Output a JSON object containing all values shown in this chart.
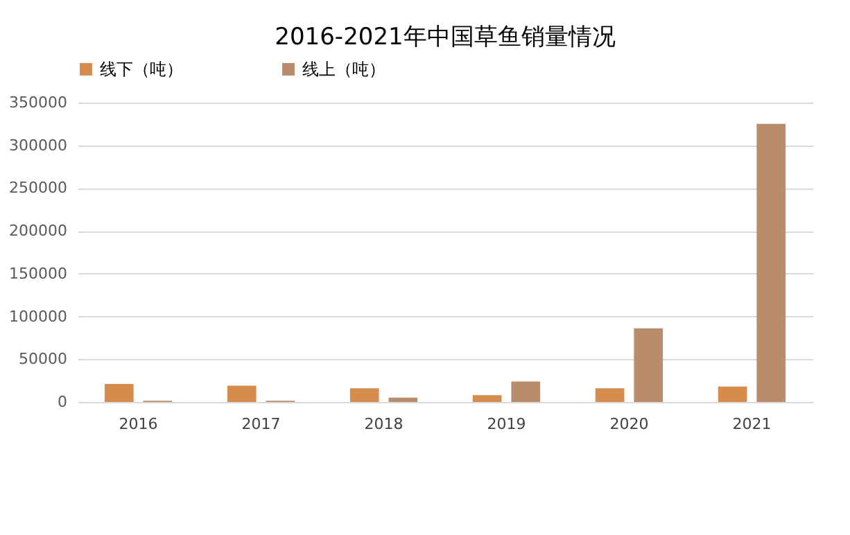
{
  "chart_data": {
    "type": "bar",
    "title": "2016-2021年中国草鱼销量情况",
    "categories": [
      "2016",
      "2017",
      "2018",
      "2019",
      "2020",
      "2021"
    ],
    "series": [
      {
        "name": "线下（吨）",
        "color": "#d58c4d",
        "values": [
          21000,
          19000,
          16000,
          8000,
          16000,
          18000
        ]
      },
      {
        "name": "线上（吨）",
        "color": "#b98d6b",
        "values": [
          1500,
          1500,
          5000,
          24000,
          86000,
          325000
        ]
      }
    ],
    "ylim": [
      0,
      350000
    ],
    "yticks": [
      0,
      50000,
      100000,
      150000,
      200000,
      250000,
      300000,
      350000
    ],
    "grid": "y",
    "legend": "top"
  }
}
